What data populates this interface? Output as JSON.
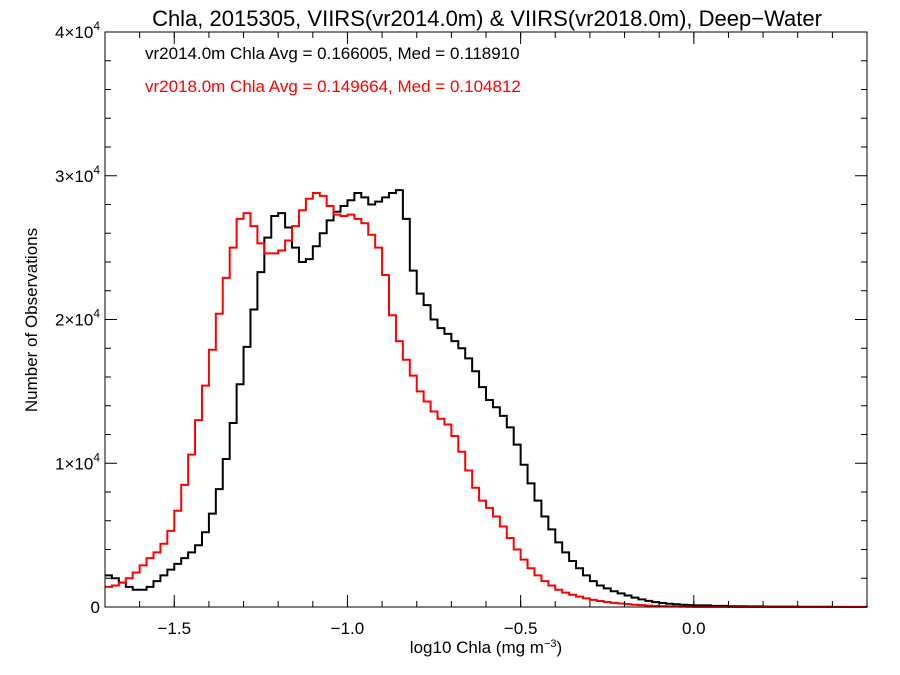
{
  "chart_data": {
    "type": "line",
    "title": "Chla, 2015305, VIIRS(vr2014.0m) & VIIRS(vr2018.0m), Deep−Water",
    "xlabel": "log10 Chla (mg m",
    "xlabel_exponent": "−3",
    "xlabel_suffix": ")",
    "ylabel": "Number of Observations",
    "xlim": [
      -1.7,
      0.5
    ],
    "ylim": [
      0,
      40000
    ],
    "grid": false,
    "x_ticks": [
      {
        "value": -1.5,
        "label": "−1.5"
      },
      {
        "value": -1.0,
        "label": "−1.0"
      },
      {
        "value": -0.5,
        "label": "−0.5"
      },
      {
        "value": 0.0,
        "label": "0.0"
      }
    ],
    "y_ticks": [
      {
        "value": 0,
        "mantissa": "0",
        "exponent": ""
      },
      {
        "value": 10000,
        "mantissa": "1×10",
        "exponent": "4"
      },
      {
        "value": 20000,
        "mantissa": "2×10",
        "exponent": "4"
      },
      {
        "value": 30000,
        "mantissa": "3×10",
        "exponent": "4"
      },
      {
        "value": 40000,
        "mantissa": "4×10",
        "exponent": "4"
      }
    ],
    "annotations": [
      {
        "text": "vr2014.0m Chla Avg = 0.166005, Med = 0.118910",
        "color": "#000000"
      },
      {
        "text": "vr2018.0m Chla Avg = 0.149664, Med = 0.104812",
        "color": "#ff0000"
      }
    ],
    "series": [
      {
        "color": "#000000",
        "x": [
          -1.7,
          -1.68,
          -1.66,
          -1.64,
          -1.62,
          -1.6,
          -1.58,
          -1.56,
          -1.54,
          -1.52,
          -1.5,
          -1.48,
          -1.46,
          -1.44,
          -1.42,
          -1.4,
          -1.38,
          -1.36,
          -1.34,
          -1.32,
          -1.3,
          -1.28,
          -1.26,
          -1.24,
          -1.22,
          -1.2,
          -1.18,
          -1.16,
          -1.14,
          -1.12,
          -1.1,
          -1.08,
          -1.06,
          -1.04,
          -1.02,
          -1.0,
          -0.98,
          -0.96,
          -0.94,
          -0.92,
          -0.9,
          -0.88,
          -0.86,
          -0.84,
          -0.82,
          -0.8,
          -0.78,
          -0.76,
          -0.74,
          -0.72,
          -0.7,
          -0.68,
          -0.66,
          -0.64,
          -0.62,
          -0.6,
          -0.58,
          -0.56,
          -0.54,
          -0.52,
          -0.5,
          -0.48,
          -0.46,
          -0.44,
          -0.42,
          -0.4,
          -0.38,
          -0.36,
          -0.34,
          -0.32,
          -0.3,
          -0.28,
          -0.26,
          -0.24,
          -0.22,
          -0.2,
          -0.18,
          -0.16,
          -0.14,
          -0.12,
          -0.1,
          -0.08,
          -0.06,
          -0.04,
          -0.02,
          0.0,
          0.05,
          0.1,
          0.15,
          0.2,
          0.3,
          0.4,
          0.5
        ],
        "y": [
          2200,
          2000,
          1700,
          1400,
          1200,
          1200,
          1400,
          1800,
          2200,
          2600,
          3000,
          3400,
          3800,
          4300,
          5200,
          6500,
          8200,
          10300,
          12800,
          15500,
          18100,
          20700,
          23300,
          25700,
          27200,
          27400,
          26400,
          25000,
          24000,
          24200,
          25100,
          26000,
          26900,
          27500,
          27900,
          28300,
          28800,
          28500,
          28000,
          28200,
          28500,
          28800,
          29000,
          27000,
          23400,
          21800,
          21000,
          20000,
          19400,
          19000,
          18500,
          18000,
          17300,
          16400,
          15300,
          14400,
          13900,
          13300,
          12500,
          11300,
          9900,
          8600,
          7400,
          6300,
          5400,
          4500,
          3800,
          3200,
          2700,
          2200,
          1800,
          1500,
          1300,
          1100,
          950,
          800,
          650,
          530,
          430,
          340,
          280,
          230,
          190,
          160,
          130,
          110,
          80,
          55,
          40,
          28,
          15,
          8,
          4
        ]
      },
      {
        "color": "#ff0000",
        "x": [
          -1.7,
          -1.68,
          -1.66,
          -1.64,
          -1.62,
          -1.6,
          -1.58,
          -1.56,
          -1.54,
          -1.52,
          -1.5,
          -1.48,
          -1.46,
          -1.44,
          -1.42,
          -1.4,
          -1.38,
          -1.36,
          -1.34,
          -1.32,
          -1.3,
          -1.28,
          -1.26,
          -1.24,
          -1.22,
          -1.2,
          -1.18,
          -1.16,
          -1.14,
          -1.12,
          -1.1,
          -1.08,
          -1.06,
          -1.04,
          -1.02,
          -1.0,
          -0.98,
          -0.96,
          -0.94,
          -0.92,
          -0.9,
          -0.88,
          -0.86,
          -0.84,
          -0.82,
          -0.8,
          -0.78,
          -0.76,
          -0.74,
          -0.72,
          -0.7,
          -0.68,
          -0.66,
          -0.64,
          -0.62,
          -0.6,
          -0.58,
          -0.56,
          -0.54,
          -0.52,
          -0.5,
          -0.48,
          -0.46,
          -0.44,
          -0.42,
          -0.4,
          -0.38,
          -0.36,
          -0.34,
          -0.32,
          -0.3,
          -0.28,
          -0.26,
          -0.24,
          -0.22,
          -0.2,
          -0.18,
          -0.16,
          -0.14,
          -0.12,
          -0.1,
          -0.08,
          -0.06,
          -0.04,
          -0.02,
          0.0,
          0.05,
          0.1,
          0.15,
          0.2,
          0.3,
          0.4,
          0.5
        ],
        "y": [
          1400,
          1500,
          1700,
          2000,
          2400,
          2900,
          3400,
          3800,
          4400,
          5300,
          6700,
          8500,
          10600,
          13000,
          15400,
          17900,
          20400,
          22900,
          25000,
          27000,
          27400,
          26500,
          25300,
          24600,
          24600,
          24800,
          25500,
          26500,
          27600,
          28400,
          28800,
          28600,
          27900,
          27300,
          27200,
          27300,
          27000,
          26700,
          25900,
          25000,
          23100,
          20300,
          18500,
          17200,
          16100,
          15000,
          14300,
          13600,
          13100,
          12700,
          11900,
          10800,
          9500,
          8300,
          7400,
          6900,
          6300,
          5600,
          4800,
          4000,
          3300,
          2700,
          2200,
          1800,
          1500,
          1200,
          1000,
          850,
          720,
          600,
          500,
          420,
          350,
          290,
          240,
          200,
          160,
          130,
          100,
          80,
          60,
          45,
          35,
          25,
          18,
          12,
          7,
          4,
          3,
          2,
          1,
          1,
          0
        ]
      }
    ]
  }
}
